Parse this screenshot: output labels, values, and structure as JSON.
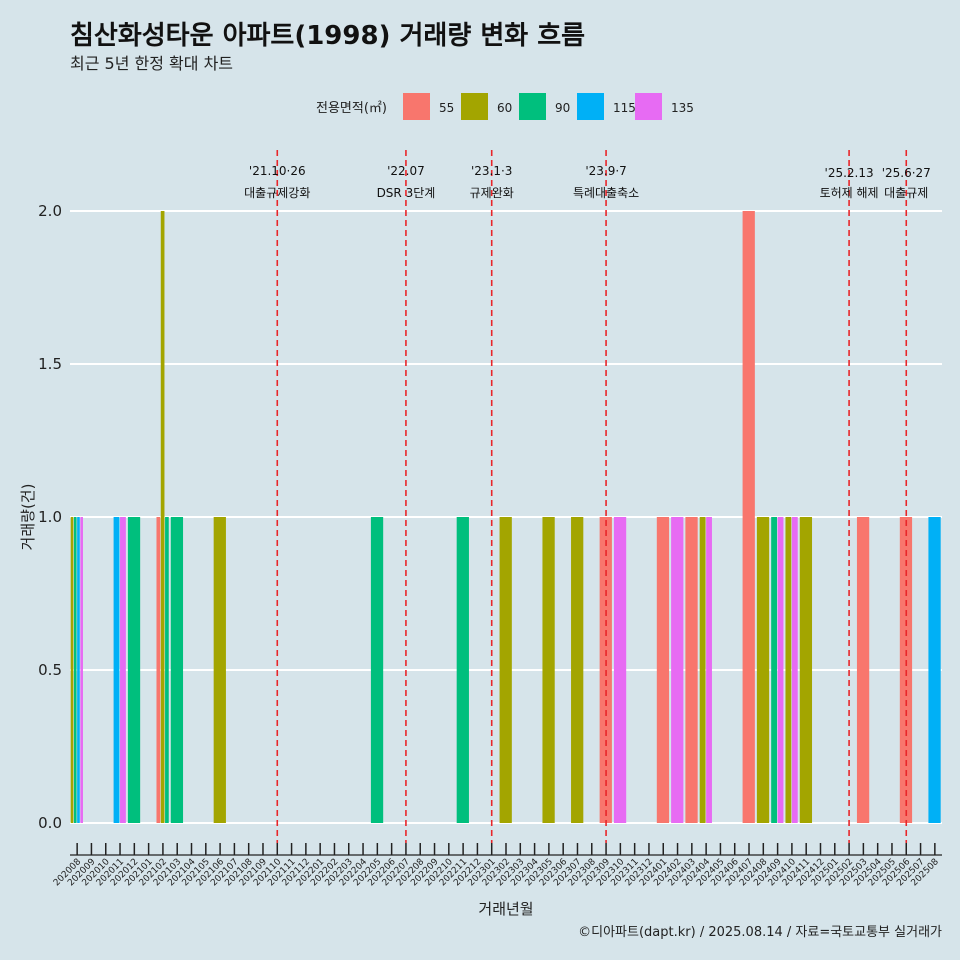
{
  "chart_data": {
    "type": "bar",
    "title": "침산화성타운 아파트(1998) 거래량 변화 흐름",
    "subtitle": "최근 5년 한정 확대 차트",
    "xlabel": "거래년월",
    "ylabel": "거래량(건)",
    "ylim": [
      0,
      2
    ],
    "yticks": [
      "0.0",
      "0.5",
      "1.0",
      "1.5",
      "2.0"
    ],
    "grid": true,
    "legend": {
      "title": "전용면적(㎡)",
      "position": "top",
      "items": [
        {
          "label": "55",
          "color": "#f8766d"
        },
        {
          "label": "60",
          "color": "#a3a500"
        },
        {
          "label": "90",
          "color": "#00bf7d"
        },
        {
          "label": "115",
          "color": "#00b0f6"
        },
        {
          "label": "135",
          "color": "#e76bf3"
        }
      ]
    },
    "categories": [
      "202008",
      "202009",
      "202010",
      "202011",
      "202012",
      "202101",
      "202102",
      "202103",
      "202104",
      "202105",
      "202106",
      "202107",
      "202108",
      "202109",
      "202110",
      "202111",
      "202112",
      "202201",
      "202202",
      "202203",
      "202204",
      "202205",
      "202206",
      "202207",
      "202208",
      "202209",
      "202210",
      "202211",
      "202212",
      "202301",
      "202302",
      "202303",
      "202304",
      "202305",
      "202306",
      "202307",
      "202308",
      "202309",
      "202310",
      "202311",
      "202312",
      "202401",
      "202402",
      "202403",
      "202404",
      "202405",
      "202406",
      "202407",
      "202408",
      "202409",
      "202410",
      "202411",
      "202412",
      "202501",
      "202502",
      "202503",
      "202504",
      "202505",
      "202506",
      "202507",
      "202508"
    ],
    "bars": [
      {
        "month": "202008",
        "area": "60",
        "value": 1
      },
      {
        "month": "202008",
        "area": "90",
        "value": 1
      },
      {
        "month": "202008",
        "area": "115",
        "value": 1
      },
      {
        "month": "202008",
        "area": "135",
        "value": 1
      },
      {
        "month": "202011",
        "area": "115",
        "value": 1
      },
      {
        "month": "202011",
        "area": "135",
        "value": 1
      },
      {
        "month": "202012",
        "area": "90",
        "value": 1
      },
      {
        "month": "202102",
        "area": "55",
        "value": 1
      },
      {
        "month": "202102",
        "area": "60",
        "value": 2
      },
      {
        "month": "202102",
        "area": "90",
        "value": 1
      },
      {
        "month": "202103",
        "area": "90",
        "value": 1
      },
      {
        "month": "202106",
        "area": "60",
        "value": 1
      },
      {
        "month": "202205",
        "area": "90",
        "value": 1
      },
      {
        "month": "202211",
        "area": "90",
        "value": 1
      },
      {
        "month": "202302",
        "area": "60",
        "value": 1
      },
      {
        "month": "202305",
        "area": "60",
        "value": 1
      },
      {
        "month": "202307",
        "area": "60",
        "value": 1
      },
      {
        "month": "202309",
        "area": "55",
        "value": 1
      },
      {
        "month": "202310",
        "area": "135",
        "value": 1
      },
      {
        "month": "202401",
        "area": "55",
        "value": 1
      },
      {
        "month": "202402",
        "area": "135",
        "value": 1
      },
      {
        "month": "202403",
        "area": "55",
        "value": 1
      },
      {
        "month": "202404",
        "area": "60",
        "value": 1
      },
      {
        "month": "202404",
        "area": "135",
        "value": 1
      },
      {
        "month": "202407",
        "area": "55",
        "value": 2
      },
      {
        "month": "202408",
        "area": "60",
        "value": 1
      },
      {
        "month": "202409",
        "area": "90",
        "value": 1
      },
      {
        "month": "202409",
        "area": "135",
        "value": 1
      },
      {
        "month": "202410",
        "area": "60",
        "value": 1
      },
      {
        "month": "202410",
        "area": "135",
        "value": 1
      },
      {
        "month": "202411",
        "area": "60",
        "value": 1
      },
      {
        "month": "202503",
        "area": "55",
        "value": 1
      },
      {
        "month": "202506",
        "area": "55",
        "value": 1
      },
      {
        "month": "202508",
        "area": "115",
        "value": 1
      }
    ],
    "events": [
      {
        "at": 14.0,
        "date": "'21.10·26",
        "label": "대출규제강화"
      },
      {
        "at": 23.0,
        "date": "'22.07",
        "label": "DSR 3단계"
      },
      {
        "at": 29.0,
        "date": "'23.1·3",
        "label": "규제완화"
      },
      {
        "at": 37.0,
        "date": "'23.9·7",
        "label": "특례대출축소"
      },
      {
        "at": 54.0,
        "date": "'25.2.13",
        "label": "토허제 해제"
      },
      {
        "at": 58.0,
        "date": "'25.6·27",
        "label": "대출규제"
      }
    ]
  },
  "caption": "©디아파트(dapt.kr) / 2025.08.14 / 자료=국토교통부 실거래가"
}
